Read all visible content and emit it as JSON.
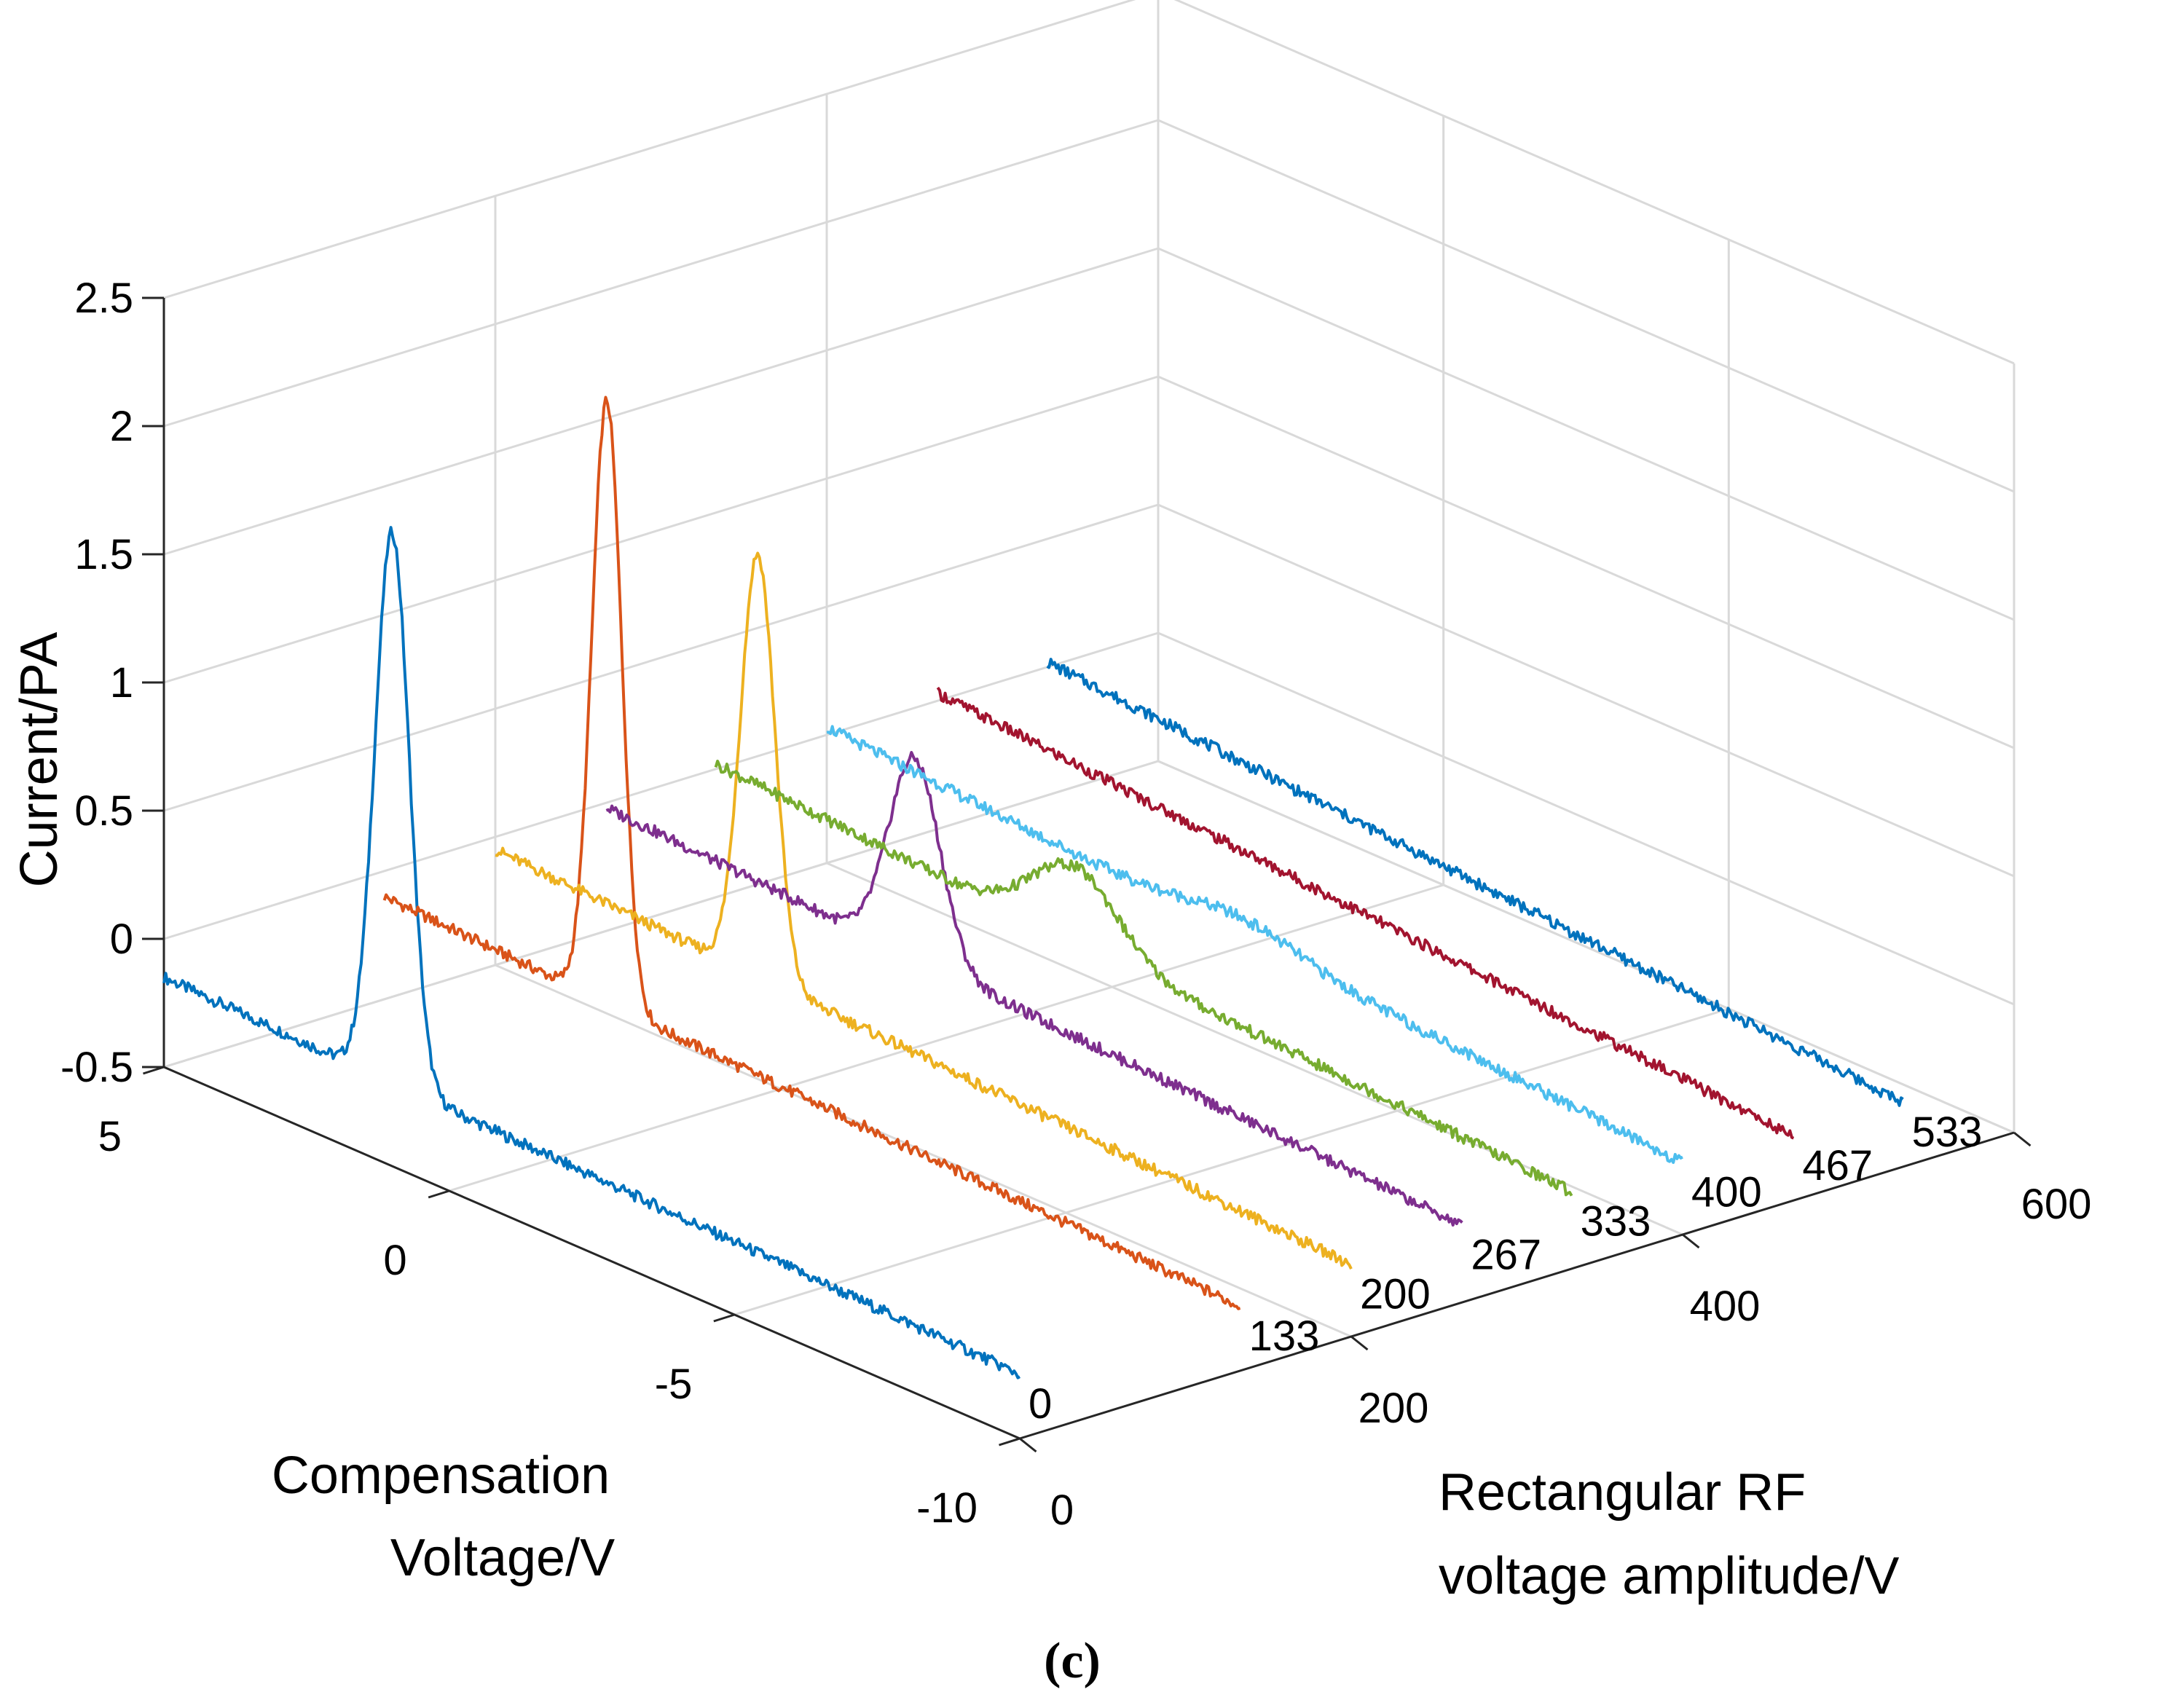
{
  "chart_data": {
    "type": "line3d",
    "title": "",
    "caption": "(c)",
    "xlabel": [
      "Compensation",
      "Voltage/V"
    ],
    "ylabel": [
      "Rectangular RF",
      "voltage amplitude/V"
    ],
    "zlabel": "Current/PA",
    "xlim": [
      -10,
      5
    ],
    "ylim": [
      0,
      600
    ],
    "zlim": [
      -0.5,
      2.5
    ],
    "x_ticks": [
      "5",
      "0",
      "-5",
      "-10"
    ],
    "y_ticks": [
      "0",
      "200",
      "400",
      "600"
    ],
    "z_ticks": [
      "-0.5",
      "0",
      "0.5",
      "1",
      "1.5",
      "2",
      "2.5"
    ],
    "series": [
      {
        "name": "0",
        "rf": 0,
        "color": "#0072BD",
        "peak_cv": 1.0,
        "peak_height": 2.15,
        "peak_width": 0.3,
        "baseline_start": -0.15,
        "baseline_end": -0.25
      },
      {
        "name": "133",
        "rf": 133,
        "color": "#D95319",
        "peak_cv": 1.1,
        "peak_height": 2.35,
        "peak_width": 0.26,
        "baseline_start": -0.1,
        "baseline_end": -0.25
      },
      {
        "name": "200",
        "rf": 200,
        "color": "#EDB120",
        "peak_cv": 0.4,
        "peak_height": 1.65,
        "peak_width": 0.3,
        "baseline_start": -0.05,
        "baseline_end": -0.22
      },
      {
        "name": "267",
        "rf": 267,
        "color": "#7E2F8E",
        "peak_cv": -0.4,
        "peak_height": 0.78,
        "peak_width": 0.45,
        "baseline_start": -0.02,
        "baseline_end": -0.2
      },
      {
        "name": "333",
        "rf": 333,
        "color": "#77AC30",
        "peak_cv": -1.3,
        "peak_height": 0.3,
        "peak_width": 0.75,
        "baseline_start": 0.02,
        "baseline_end": -0.2
      },
      {
        "name": "400",
        "rf": 400,
        "color": "#4DBEEE",
        "peak_cv": -2.3,
        "peak_height": 0.08,
        "peak_width": 1.0,
        "baseline_start": 0.03,
        "baseline_end": -0.22
      },
      {
        "name": "467",
        "rf": 467,
        "color": "#A2142F",
        "peak_cv": null,
        "peak_height": 0,
        "peak_width": 1.0,
        "baseline_start": 0.03,
        "baseline_end": -0.25
      },
      {
        "name": "533",
        "rf": 533,
        "color": "#0072BD",
        "peak_cv": null,
        "peak_height": 0,
        "peak_width": 1.0,
        "baseline_start": 0.02,
        "baseline_end": -0.25
      }
    ]
  },
  "colors": {
    "grid": "#d9d9d9",
    "axis": "#262626",
    "background": "#ffffff"
  }
}
